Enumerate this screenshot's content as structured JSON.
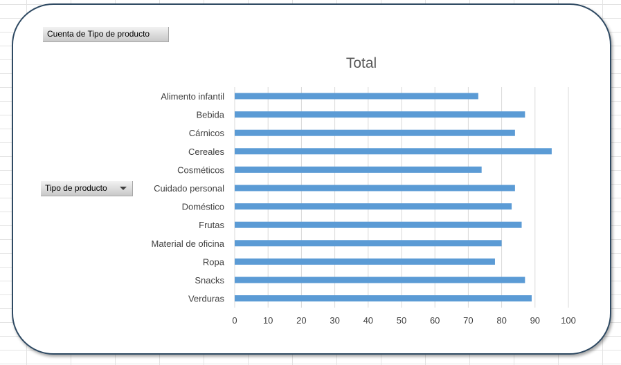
{
  "values_field": {
    "label": "Cuenta de Tipo de producto"
  },
  "rows_field": {
    "label": "Tipo de producto"
  },
  "chart_data": {
    "type": "bar",
    "orientation": "horizontal",
    "title": "Total",
    "categories": [
      "Alimento infantil",
      "Bebida",
      "Cárnicos",
      "Cereales",
      "Cosméticos",
      "Cuidado personal",
      "Doméstico",
      "Frutas",
      "Material de oficina",
      "Ropa",
      "Snacks",
      "Verduras"
    ],
    "values": [
      73,
      87,
      84,
      95,
      74,
      84,
      83,
      86,
      80,
      78,
      87,
      89
    ],
    "xlim": [
      0,
      100
    ],
    "xticks": [
      0,
      10,
      20,
      30,
      40,
      50,
      60,
      70,
      80,
      90,
      100
    ],
    "grid": true,
    "legend": "none",
    "bar_color": "#5b9bd5",
    "grid_color": "#d9d9d9"
  }
}
